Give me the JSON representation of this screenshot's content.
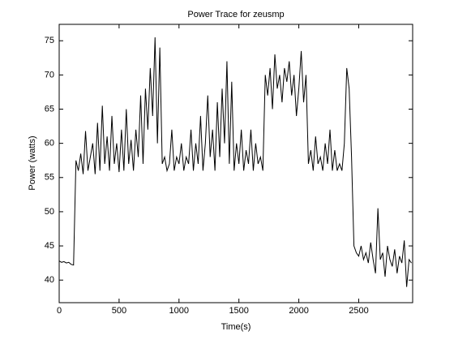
{
  "chart_data": {
    "type": "line",
    "title": "Power Trace for zeusmp",
    "xlabel": "Time(s)",
    "ylabel": "Power (watts)",
    "color": "#000000",
    "x": [
      0,
      20,
      40,
      60,
      80,
      100,
      120,
      140,
      160,
      180,
      200,
      220,
      240,
      260,
      280,
      300,
      320,
      340,
      360,
      380,
      400,
      420,
      440,
      460,
      480,
      500,
      520,
      540,
      560,
      580,
      600,
      620,
      640,
      660,
      680,
      700,
      720,
      740,
      760,
      780,
      800,
      820,
      840,
      860,
      880,
      900,
      920,
      940,
      960,
      980,
      1000,
      1020,
      1040,
      1060,
      1080,
      1100,
      1120,
      1140,
      1160,
      1180,
      1200,
      1220,
      1240,
      1260,
      1280,
      1300,
      1320,
      1340,
      1360,
      1380,
      1400,
      1420,
      1440,
      1460,
      1480,
      1500,
      1520,
      1540,
      1560,
      1580,
      1600,
      1620,
      1640,
      1660,
      1680,
      1700,
      1720,
      1740,
      1760,
      1780,
      1800,
      1820,
      1840,
      1860,
      1880,
      1900,
      1920,
      1940,
      1960,
      1980,
      2000,
      2020,
      2040,
      2060,
      2080,
      2100,
      2120,
      2140,
      2160,
      2180,
      2200,
      2220,
      2240,
      2260,
      2280,
      2300,
      2320,
      2340,
      2360,
      2380,
      2400,
      2420,
      2440,
      2460,
      2480,
      2500,
      2520,
      2540,
      2560,
      2580,
      2600,
      2620,
      2640,
      2660,
      2680,
      2700,
      2720,
      2740,
      2760,
      2780,
      2800,
      2820,
      2840,
      2860,
      2880,
      2900,
      2920,
      2940
    ],
    "values": [
      42.8,
      42.6,
      42.7,
      42.5,
      42.6,
      42.3,
      42.2,
      57.5,
      56,
      58.5,
      55.5,
      61.8,
      56,
      58,
      60,
      55.5,
      63,
      56,
      65.5,
      57,
      61,
      56,
      64,
      57,
      60,
      55.8,
      62,
      56,
      65,
      57,
      60.5,
      56,
      62,
      58,
      67,
      57,
      68,
      62,
      71,
      64,
      75.5,
      60,
      74,
      57,
      58,
      56,
      57,
      62,
      56,
      58,
      57,
      60,
      56,
      58,
      57,
      62,
      56,
      60,
      57,
      64,
      56,
      60,
      67,
      58,
      62,
      56,
      66,
      58,
      68,
      60,
      72,
      57,
      69,
      56,
      60,
      57,
      62,
      56,
      59,
      57,
      62,
      56,
      60,
      57,
      58,
      56,
      70,
      67,
      71,
      65,
      73,
      68,
      70,
      66,
      71,
      69,
      72,
      67,
      70,
      64,
      68,
      73.5,
      66,
      70,
      57,
      59,
      56,
      61,
      57,
      58,
      56,
      60,
      57,
      62,
      56,
      59,
      56,
      57,
      56,
      60,
      71,
      68,
      58,
      45,
      44,
      43.5,
      45,
      43,
      44,
      42.5,
      45.5,
      43,
      41,
      50.5,
      43,
      44,
      40.5,
      45,
      43,
      42,
      44.5,
      41,
      43.5,
      42.5,
      45.8,
      39,
      43,
      42.5
    ],
    "xlim": [
      0,
      2950
    ],
    "ylim": [
      36.7,
      77.4
    ],
    "xticks": [
      0,
      500,
      1000,
      1500,
      2000,
      2500
    ],
    "yticks": [
      40,
      45,
      50,
      55,
      60,
      65,
      70,
      75
    ]
  }
}
